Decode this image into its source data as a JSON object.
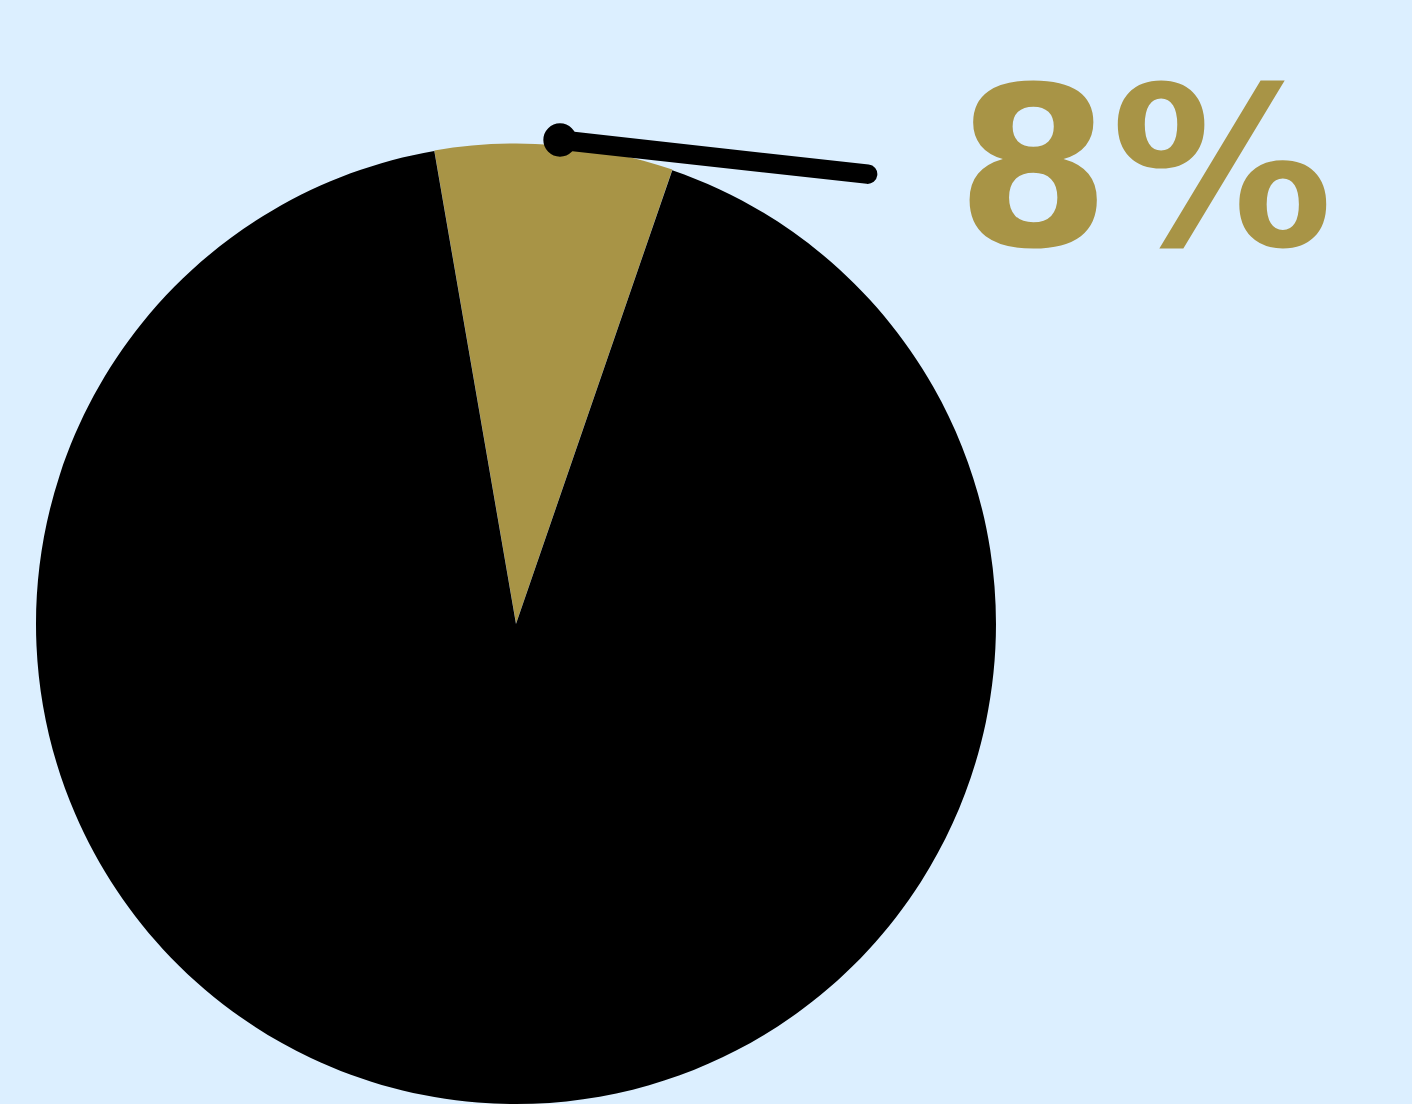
{
  "chart_data": {
    "type": "pie",
    "categories": [
      null,
      null
    ],
    "values": [
      8,
      92
    ],
    "colors": [
      "#a89446",
      "#000000"
    ],
    "value_labels": [
      "8%",
      null
    ]
  }
}
